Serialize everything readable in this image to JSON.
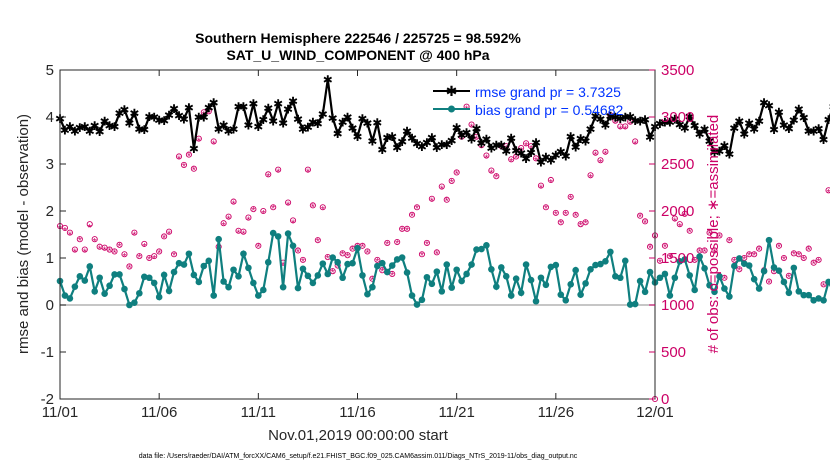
{
  "chart_data": {
    "type": "line",
    "title_line1": "Southern Hemisphere 222546 / 225725 = 98.592%",
    "title_line2": "SAT_U_WIND_COMPONENT @ 400 hPa",
    "xlabel": "Nov.01,2019 00:00:00 start",
    "ylabel_left": "rmse and bias (model - observation)",
    "ylabel_right": "# of obs: o=possible; ∗=assimilated",
    "footer": "data file: /Users/raeder/DAI/ATM_forcXX/CAM6_setup/f.e21.FHIST_BGC.f09_025.CAM6assim.011/Diags_NTrS_2019-11/obs_diag_output.nc",
    "xlim": [
      0,
      30
    ],
    "ylim_left": [
      -2,
      5
    ],
    "ylim_right": [
      0,
      3500
    ],
    "x_tick_positions": [
      0,
      5,
      10,
      15,
      20,
      25,
      30
    ],
    "x_tick_labels": [
      "11/01",
      "11/06",
      "11/11",
      "11/16",
      "11/21",
      "11/26",
      "12/01"
    ],
    "y_left_ticks": [
      -2,
      -1,
      0,
      1,
      2,
      3,
      4,
      5
    ],
    "y_right_ticks": [
      0,
      500,
      1000,
      1500,
      2000,
      2500,
      3000,
      3500
    ],
    "legend": {
      "rmse_label": "rmse grand pr = 3.7325",
      "bias_label": "bias grand pr = 0.54682"
    },
    "step_days": 0.25,
    "colors": {
      "rmse": "#000000",
      "bias": "#0f7f7f",
      "obs": "#cc0066",
      "zero_line": "#b3b3b3",
      "legend_text": "#0033ff"
    },
    "series": [
      {
        "name": "rmse",
        "axis": "left",
        "values": [
          3.97,
          3.72,
          3.8,
          3.7,
          3.78,
          3.8,
          3.7,
          3.82,
          3.69,
          3.92,
          3.82,
          3.8,
          4.08,
          4.16,
          3.87,
          4.08,
          3.74,
          3.73,
          4.01,
          4.0,
          3.94,
          3.93,
          4.04,
          4.18,
          4.03,
          3.96,
          4.2,
          3.33,
          4.0,
          4.0,
          4.2,
          4.31,
          3.75,
          3.83,
          3.7,
          3.74,
          4.22,
          4.22,
          3.83,
          4.29,
          3.8,
          3.95,
          4.19,
          3.92,
          4.29,
          3.87,
          4.17,
          4.34,
          3.96,
          3.74,
          3.79,
          3.89,
          3.86,
          4.06,
          4.8,
          3.98,
          3.65,
          3.89,
          4.0,
          3.77,
          3.58,
          3.97,
          3.87,
          3.49,
          3.88,
          3.31,
          3.56,
          3.59,
          3.35,
          3.48,
          3.7,
          3.55,
          3.44,
          3.37,
          3.46,
          3.56,
          3.35,
          3.41,
          3.42,
          3.5,
          3.78,
          3.62,
          3.67,
          3.53,
          3.76,
          3.45,
          3.53,
          3.34,
          3.4,
          3.4,
          3.28,
          3.55,
          3.29,
          3.23,
          3.12,
          3.24,
          3.46,
          3.04,
          3.15,
          3.08,
          3.19,
          3.27,
          3.17,
          3.58,
          3.36,
          3.54,
          3.49,
          3.74,
          4.02,
          3.96,
          3.83,
          4.02,
          4.0,
          3.97,
          4.0,
          4.01,
          3.93,
          3.92,
          3.95,
          3.57,
          3.8,
          3.86,
          3.89,
          3.89,
          3.96,
          3.84,
          3.77,
          4.01,
          3.82,
          3.64,
          3.75,
          3.49,
          3.26,
          3.28,
          3.39,
          3.21,
          3.77,
          3.91,
          3.64,
          3.87,
          3.75,
          3.92,
          4.31,
          4.24,
          3.73,
          4.11,
          3.83,
          3.76,
          3.94,
          4.17,
          3.99,
          3.7,
          3.7,
          3.76,
          3.52,
          3.95,
          4.22
        ]
      },
      {
        "name": "bias",
        "axis": "left",
        "values": [
          0.51,
          0.2,
          0.14,
          0.39,
          0.61,
          0.52,
          0.82,
          0.29,
          0.58,
          0.24,
          0.41,
          0.65,
          0.65,
          0.34,
          0.0,
          0.05,
          0.25,
          0.6,
          0.58,
          0.47,
          0.17,
          0.64,
          0.3,
          0.7,
          0.89,
          0.86,
          1.09,
          0.64,
          0.49,
          0.83,
          0.94,
          0.2,
          1.4,
          0.5,
          0.38,
          0.75,
          0.61,
          1.09,
          0.79,
          0.47,
          0.2,
          0.32,
          0.91,
          1.53,
          1.46,
          0.38,
          1.52,
          1.26,
          0.36,
          0.77,
          0.62,
          0.47,
          0.63,
          0.88,
          0.66,
          1.01,
          0.91,
          0.58,
          0.87,
          0.89,
          1.21,
          0.63,
          0.23,
          0.38,
          0.83,
          0.89,
          0.7,
          0.84,
          0.97,
          1.01,
          0.69,
          0.2,
          0.01,
          0.11,
          0.59,
          0.45,
          0.71,
          0.29,
          0.86,
          0.37,
          0.75,
          0.51,
          0.66,
          0.86,
          1.18,
          1.19,
          1.27,
          0.76,
          0.39,
          0.8,
          0.61,
          0.2,
          0.56,
          0.26,
          0.86,
          0.53,
          0.08,
          0.58,
          0.43,
          0.81,
          0.85,
          0.22,
          0.1,
          0.44,
          0.74,
          0.22,
          0.46,
          0.76,
          0.85,
          0.87,
          0.93,
          1.13,
          0.61,
          0.58,
          0.94,
          0.01,
          0.02,
          0.51,
          0.28,
          0.7,
          0.48,
          0.58,
          0.66,
          0.2,
          0.58,
          0.93,
          0.97,
          0.63,
          0.32,
          1.03,
          0.78,
          0.42,
          0.28,
          0.61,
          0.35,
          0.18,
          0.83,
          0.99,
          0.88,
          0.84,
          0.55,
          0.35,
          0.72,
          1.38,
          0.8,
          0.73,
          0.49,
          0.26,
          0.79,
          0.29,
          0.21,
          0.21,
          0.1,
          0.14,
          0.1,
          0.49,
          0.29
        ]
      },
      {
        "name": "obs_possible",
        "axis": "right",
        "values": [
          1840,
          1820,
          1770,
          1590,
          1700,
          1590,
          1860,
          1700,
          1620,
          1610,
          1590,
          1570,
          1640,
          1540,
          1410,
          1770,
          1520,
          1650,
          1500,
          1520,
          1570,
          1730,
          1780,
          1540,
          2580,
          2490,
          2600,
          2450,
          2770,
          3050,
          3060,
          2740,
          1620,
          1870,
          1940,
          2100,
          1790,
          1780,
          1930,
          2020,
          1630,
          2000,
          2390,
          2040,
          2440,
          1450,
          2090,
          1900,
          1580,
          1480,
          2440,
          2060,
          1690,
          2040,
          1510,
          1360,
          1420,
          1550,
          1530,
          1600,
          1630,
          1630,
          1570,
          1280,
          1480,
          1370,
          1660,
          1330,
          1670,
          1810,
          1810,
          1960,
          2040,
          1540,
          1660,
          2130,
          1560,
          2260,
          2120,
          2320,
          2410,
          2790,
          3110,
          2920,
          2790,
          2700,
          2590,
          2430,
          2370,
          2690,
          2690,
          2550,
          2580,
          2670,
          2720,
          2690,
          2560,
          2270,
          2040,
          2330,
          1980,
          1880,
          1980,
          2150,
          1960,
          1860,
          1880,
          2380,
          2620,
          2540,
          2630,
          3020,
          2960,
          2900,
          2900,
          2950,
          2740,
          1950,
          1890,
          1620,
          1740,
          1470,
          1630,
          1520,
          1920,
          1860,
          1970,
          1790,
          1480,
          1580,
          1580,
          1770,
          1580,
          1740,
          1290,
          1690,
          1480,
          1380,
          1500,
          1540,
          1540,
          1600,
          1370,
          1250,
          1360,
          1630,
          1500,
          1310,
          1550,
          1540,
          1500,
          1600,
          1450,
          1480,
          1220,
          2220,
          2120,
          1430,
          1370,
          1230,
          1320
        ]
      },
      {
        "name": "obs_assimilated",
        "axis": "right",
        "values": [
          1820,
          1800,
          1750,
          1570,
          1690,
          1570,
          1830,
          1680,
          1600,
          1590,
          1580,
          1560,
          1630,
          1520,
          1400,
          1750,
          1510,
          1630,
          1490,
          1500,
          1560,
          1720,
          1760,
          1530,
          2560,
          2480,
          2590,
          2440,
          2750,
          3030,
          3040,
          2720,
          1600,
          1850,
          1920,
          2080,
          1770,
          1760,
          1910,
          2010,
          1620,
          1980,
          2370,
          2030,
          2420,
          1430,
          2070,
          1880,
          1570,
          1470,
          2420,
          2050,
          1680,
          2020,
          1500,
          1350,
          1410,
          1540,
          1520,
          1590,
          1620,
          1620,
          1560,
          1270,
          1470,
          1360,
          1650,
          1320,
          1660,
          1800,
          1800,
          1950,
          2030,
          1530,
          1650,
          2110,
          1550,
          2240,
          2110,
          2310,
          2400,
          2770,
          3090,
          2900,
          2770,
          2690,
          2570,
          2410,
          2360,
          2670,
          2670,
          2530,
          2570,
          2650,
          2700,
          2670,
          2540,
          2250,
          2030,
          2310,
          1970,
          1870,
          1970,
          2140,
          1950,
          1850,
          1870,
          2360,
          2600,
          2520,
          2610,
          3000,
          2940,
          2880,
          2880,
          2930,
          2720,
          1940,
          1880,
          1610,
          1730,
          1460,
          1620,
          1510,
          1900,
          1840,
          1950,
          1780,
          1470,
          1570,
          1570,
          1760,
          1570,
          1730,
          1280,
          1680,
          1470,
          1370,
          1490,
          1530,
          1530,
          1590,
          1360,
          1240,
          1350,
          1620,
          1490,
          1300,
          1540,
          1530,
          1490,
          1590,
          1440,
          1470,
          1210,
          2200,
          2100,
          1420,
          1360,
          1220,
          1310
        ]
      }
    ],
    "extra_markers": [
      {
        "name": "obs_possible_at_zero",
        "axis": "right",
        "x": 30,
        "y": 0
      }
    ]
  }
}
